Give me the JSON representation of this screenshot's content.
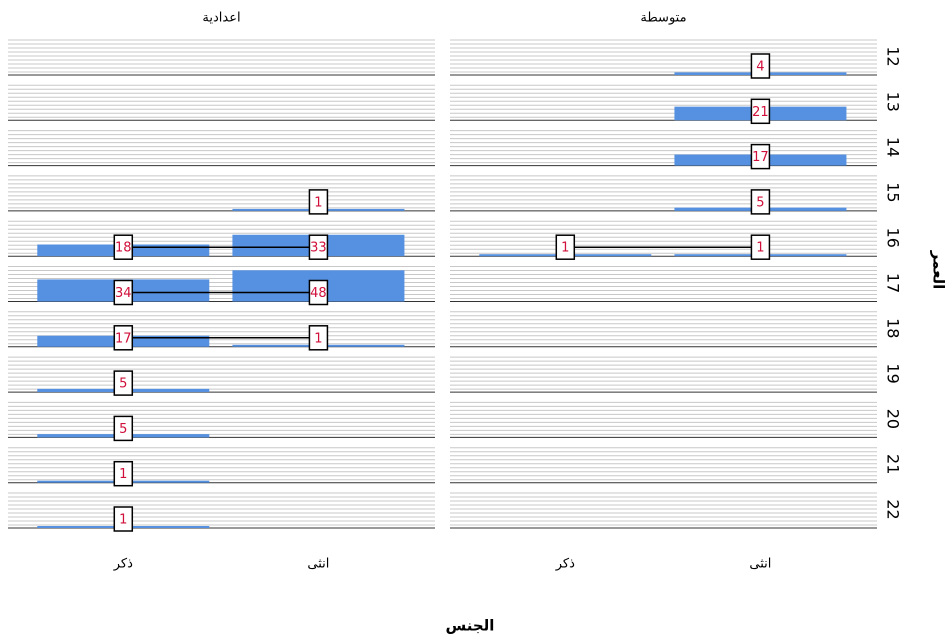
{
  "chart_data": {
    "type": "bar",
    "x_label": "الجنس",
    "y_label": "العمر",
    "categories": [
      "ذكر",
      "انثى"
    ],
    "rows": [
      12,
      13,
      14,
      15,
      16,
      17,
      18,
      19,
      20,
      21,
      22
    ],
    "color": "#5591e0",
    "panels": [
      {
        "title": "اعدادية",
        "series": [
          {
            "name": "ذكر",
            "values": [
              null,
              null,
              null,
              null,
              18,
              34,
              17,
              5,
              5,
              1,
              1
            ]
          },
          {
            "name": "انثى",
            "values": [
              null,
              null,
              null,
              1,
              33,
              48,
              1,
              null,
              null,
              null,
              null
            ]
          }
        ]
      },
      {
        "title": "متوسطة",
        "series": [
          {
            "name": "ذكر",
            "values": [
              null,
              null,
              null,
              null,
              1,
              null,
              null,
              null,
              null,
              null,
              null
            ]
          },
          {
            "name": "انثى",
            "values": [
              4,
              21,
              17,
              5,
              1,
              null,
              null,
              null,
              null,
              null,
              null
            ]
          }
        ]
      }
    ]
  }
}
